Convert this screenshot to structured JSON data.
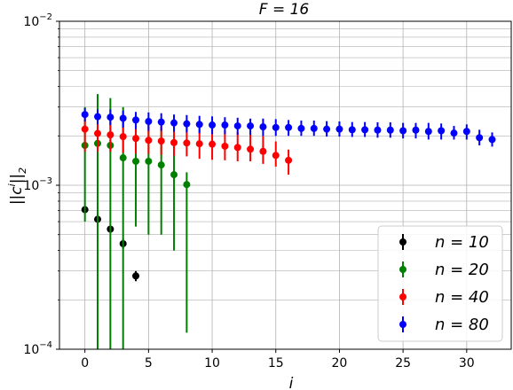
{
  "chart_data": {
    "type": "scatter",
    "title": "F = 16",
    "xlabel": "i",
    "ylabel": "||c^i||_2",
    "xlim": [
      -2,
      33.5
    ],
    "ylim": [
      0.0001,
      0.01
    ],
    "yscale": "log",
    "grid": true,
    "xticks": [
      0,
      5,
      10,
      15,
      20,
      25,
      30
    ],
    "xtick_labels": [
      "0",
      "5",
      "10",
      "15",
      "20",
      "25",
      "30"
    ],
    "yticks": [
      0.0001,
      0.001,
      0.01
    ],
    "ytick_labels": [
      {
        "base": "10",
        "exp": "−4"
      },
      {
        "base": "10",
        "exp": "−3"
      },
      {
        "base": "10",
        "exp": "−2"
      }
    ],
    "legend_placement": "lower-right",
    "series": [
      {
        "name": "n = 10",
        "color": "#000000",
        "x": [
          0,
          1,
          2,
          3,
          4
        ],
        "y": [
          0.00071,
          0.00062,
          0.00054,
          0.00044,
          0.00028
        ],
        "ylow": [
          0.00068,
          0.0006,
          0.00052,
          0.00041,
          0.00026
        ],
        "yhigh": [
          0.00074,
          0.00064,
          0.00056,
          0.00047,
          0.0003
        ]
      },
      {
        "name": "n = 20",
        "color": "#008000",
        "x": [
          0,
          1,
          2,
          3,
          4,
          5,
          6,
          7,
          8
        ],
        "y": [
          0.00175,
          0.0018,
          0.00175,
          0.00147,
          0.0014,
          0.0014,
          0.00133,
          0.00116,
          0.00101
        ],
        "ylow": [
          0.0006,
          0.0001,
          0.0001,
          0.0001,
          0.00056,
          0.0005,
          0.0005,
          0.0004,
          0.000126
        ],
        "yhigh": [
          0.003,
          0.0036,
          0.0034,
          0.003,
          0.0027,
          0.0025,
          0.0022,
          0.0019,
          0.0012
        ]
      },
      {
        "name": "n = 40",
        "color": "#ff0000",
        "x": [
          0,
          1,
          2,
          3,
          4,
          5,
          6,
          7,
          8,
          9,
          10,
          11,
          12,
          13,
          14,
          15,
          16
        ],
        "y": [
          0.0022,
          0.00207,
          0.00203,
          0.00198,
          0.00193,
          0.00188,
          0.00186,
          0.00182,
          0.00181,
          0.00179,
          0.00178,
          0.00173,
          0.0017,
          0.00166,
          0.00161,
          0.00152,
          0.00142
        ],
        "ylow": [
          0.0016,
          0.0016,
          0.0016,
          0.00158,
          0.00156,
          0.00155,
          0.00153,
          0.00151,
          0.0015,
          0.00145,
          0.00143,
          0.00142,
          0.0014,
          0.0014,
          0.00135,
          0.0013,
          0.00116
        ],
        "yhigh": [
          0.0027,
          0.0026,
          0.00255,
          0.0025,
          0.00245,
          0.00243,
          0.0024,
          0.00232,
          0.0023,
          0.00227,
          0.00223,
          0.00215,
          0.0021,
          0.00205,
          0.002,
          0.00185,
          0.00165
        ]
      },
      {
        "name": "n = 80",
        "color": "#0000ff",
        "x": [
          0,
          1,
          2,
          3,
          4,
          5,
          6,
          7,
          8,
          9,
          10,
          11,
          12,
          13,
          14,
          15,
          16,
          17,
          18,
          19,
          20,
          21,
          22,
          23,
          24,
          25,
          26,
          27,
          28,
          29,
          30,
          31,
          32
        ],
        "y": [
          0.0027,
          0.00262,
          0.0026,
          0.00256,
          0.0025,
          0.00245,
          0.00243,
          0.0024,
          0.00237,
          0.00235,
          0.00233,
          0.00233,
          0.0023,
          0.0023,
          0.00227,
          0.00225,
          0.00225,
          0.00222,
          0.00222,
          0.0022,
          0.0022,
          0.00218,
          0.00218,
          0.00217,
          0.00217,
          0.00215,
          0.00217,
          0.00213,
          0.00215,
          0.00208,
          0.00213,
          0.00195,
          0.0019
        ],
        "ylow": [
          0.00245,
          0.00235,
          0.00233,
          0.00225,
          0.0022,
          0.00215,
          0.00215,
          0.00212,
          0.0021,
          0.00208,
          0.00205,
          0.00205,
          0.00203,
          0.00203,
          0.002,
          0.002,
          0.002,
          0.002,
          0.002,
          0.00198,
          0.00198,
          0.00197,
          0.00197,
          0.00195,
          0.00195,
          0.00193,
          0.00193,
          0.0019,
          0.0019,
          0.0019,
          0.0019,
          0.00175,
          0.00172
        ],
        "yhigh": [
          0.00295,
          0.0029,
          0.0029,
          0.00285,
          0.0028,
          0.00278,
          0.00275,
          0.0027,
          0.00268,
          0.00265,
          0.00263,
          0.0026,
          0.00258,
          0.00255,
          0.00255,
          0.00253,
          0.0025,
          0.00248,
          0.00248,
          0.00246,
          0.00245,
          0.00243,
          0.00243,
          0.00242,
          0.00242,
          0.0024,
          0.0024,
          0.0024,
          0.00238,
          0.0023,
          0.00235,
          0.00218,
          0.0021
        ]
      }
    ]
  }
}
